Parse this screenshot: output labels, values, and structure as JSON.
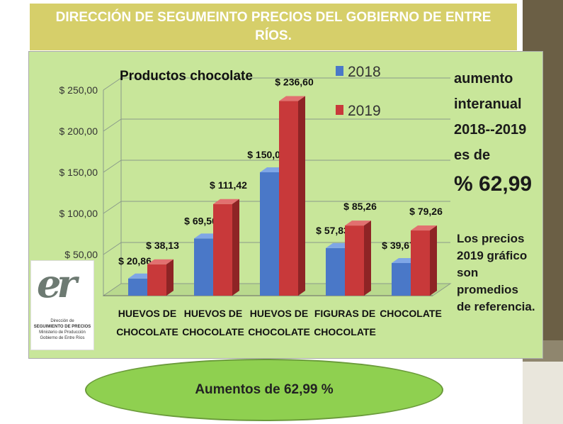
{
  "slide_title": "DIRECCIÓN DE SEGUMEINTO PRECIOS DEL GOBIERNO DE ENTRE RÍOS.",
  "colors": {
    "series_2018": "#4a78c8",
    "series_2019": "#c8393a",
    "panel": "#c8e69a",
    "banner": "#d6cf6a",
    "bubble": "#8fd050"
  },
  "chart_data": {
    "type": "bar",
    "title": "Productos  chocolate",
    "categories": [
      "HUEVOS DE CHOCOLATE",
      "HUEVOS DE CHOCOLATE",
      "HUEVOS DE CHOCOLATE",
      "FIGURAS DE CHOCOLATE",
      "CHOCOLATE"
    ],
    "series": [
      {
        "name": "2018",
        "values": [
          20.86,
          69.5,
          150.0,
          57.83,
          39.67
        ],
        "labels": [
          "$ 20,86",
          "$ 69,50",
          "$ 150,00",
          "$ 57,83",
          "$ 39,67"
        ]
      },
      {
        "name": "2019",
        "values": [
          38.13,
          111.42,
          236.6,
          85.26,
          79.26
        ],
        "labels": [
          "$ 38,13",
          "$ 111,42",
          "$ 236,60",
          "$ 85,26",
          "$ 79,26"
        ]
      }
    ],
    "ylim": [
      0,
      250
    ],
    "yticks": [
      50,
      100,
      150,
      200,
      250
    ],
    "ytick_labels": [
      "$ 50,00",
      "$ 100,00",
      "$ 150,00",
      "$ 200,00",
      "$ 250,00"
    ],
    "legend_position": "top",
    "grid": true
  },
  "note_increase": [
    "aumento",
    "interanual",
    "2018--2019",
    "es de"
  ],
  "note_percent": "% 62,99",
  "note_average": [
    "Los precios",
    "2019 gráfico",
    "son promedios",
    "de referencia."
  ],
  "logo": {
    "letters": "er",
    "lines": [
      "Dirección de",
      "SEGUIMIENTO DE PRECIOS",
      "Ministerio de Producción",
      "Gobierno de Entre Ríos"
    ]
  },
  "bubble_text": "Aumentos de 62,99 %"
}
